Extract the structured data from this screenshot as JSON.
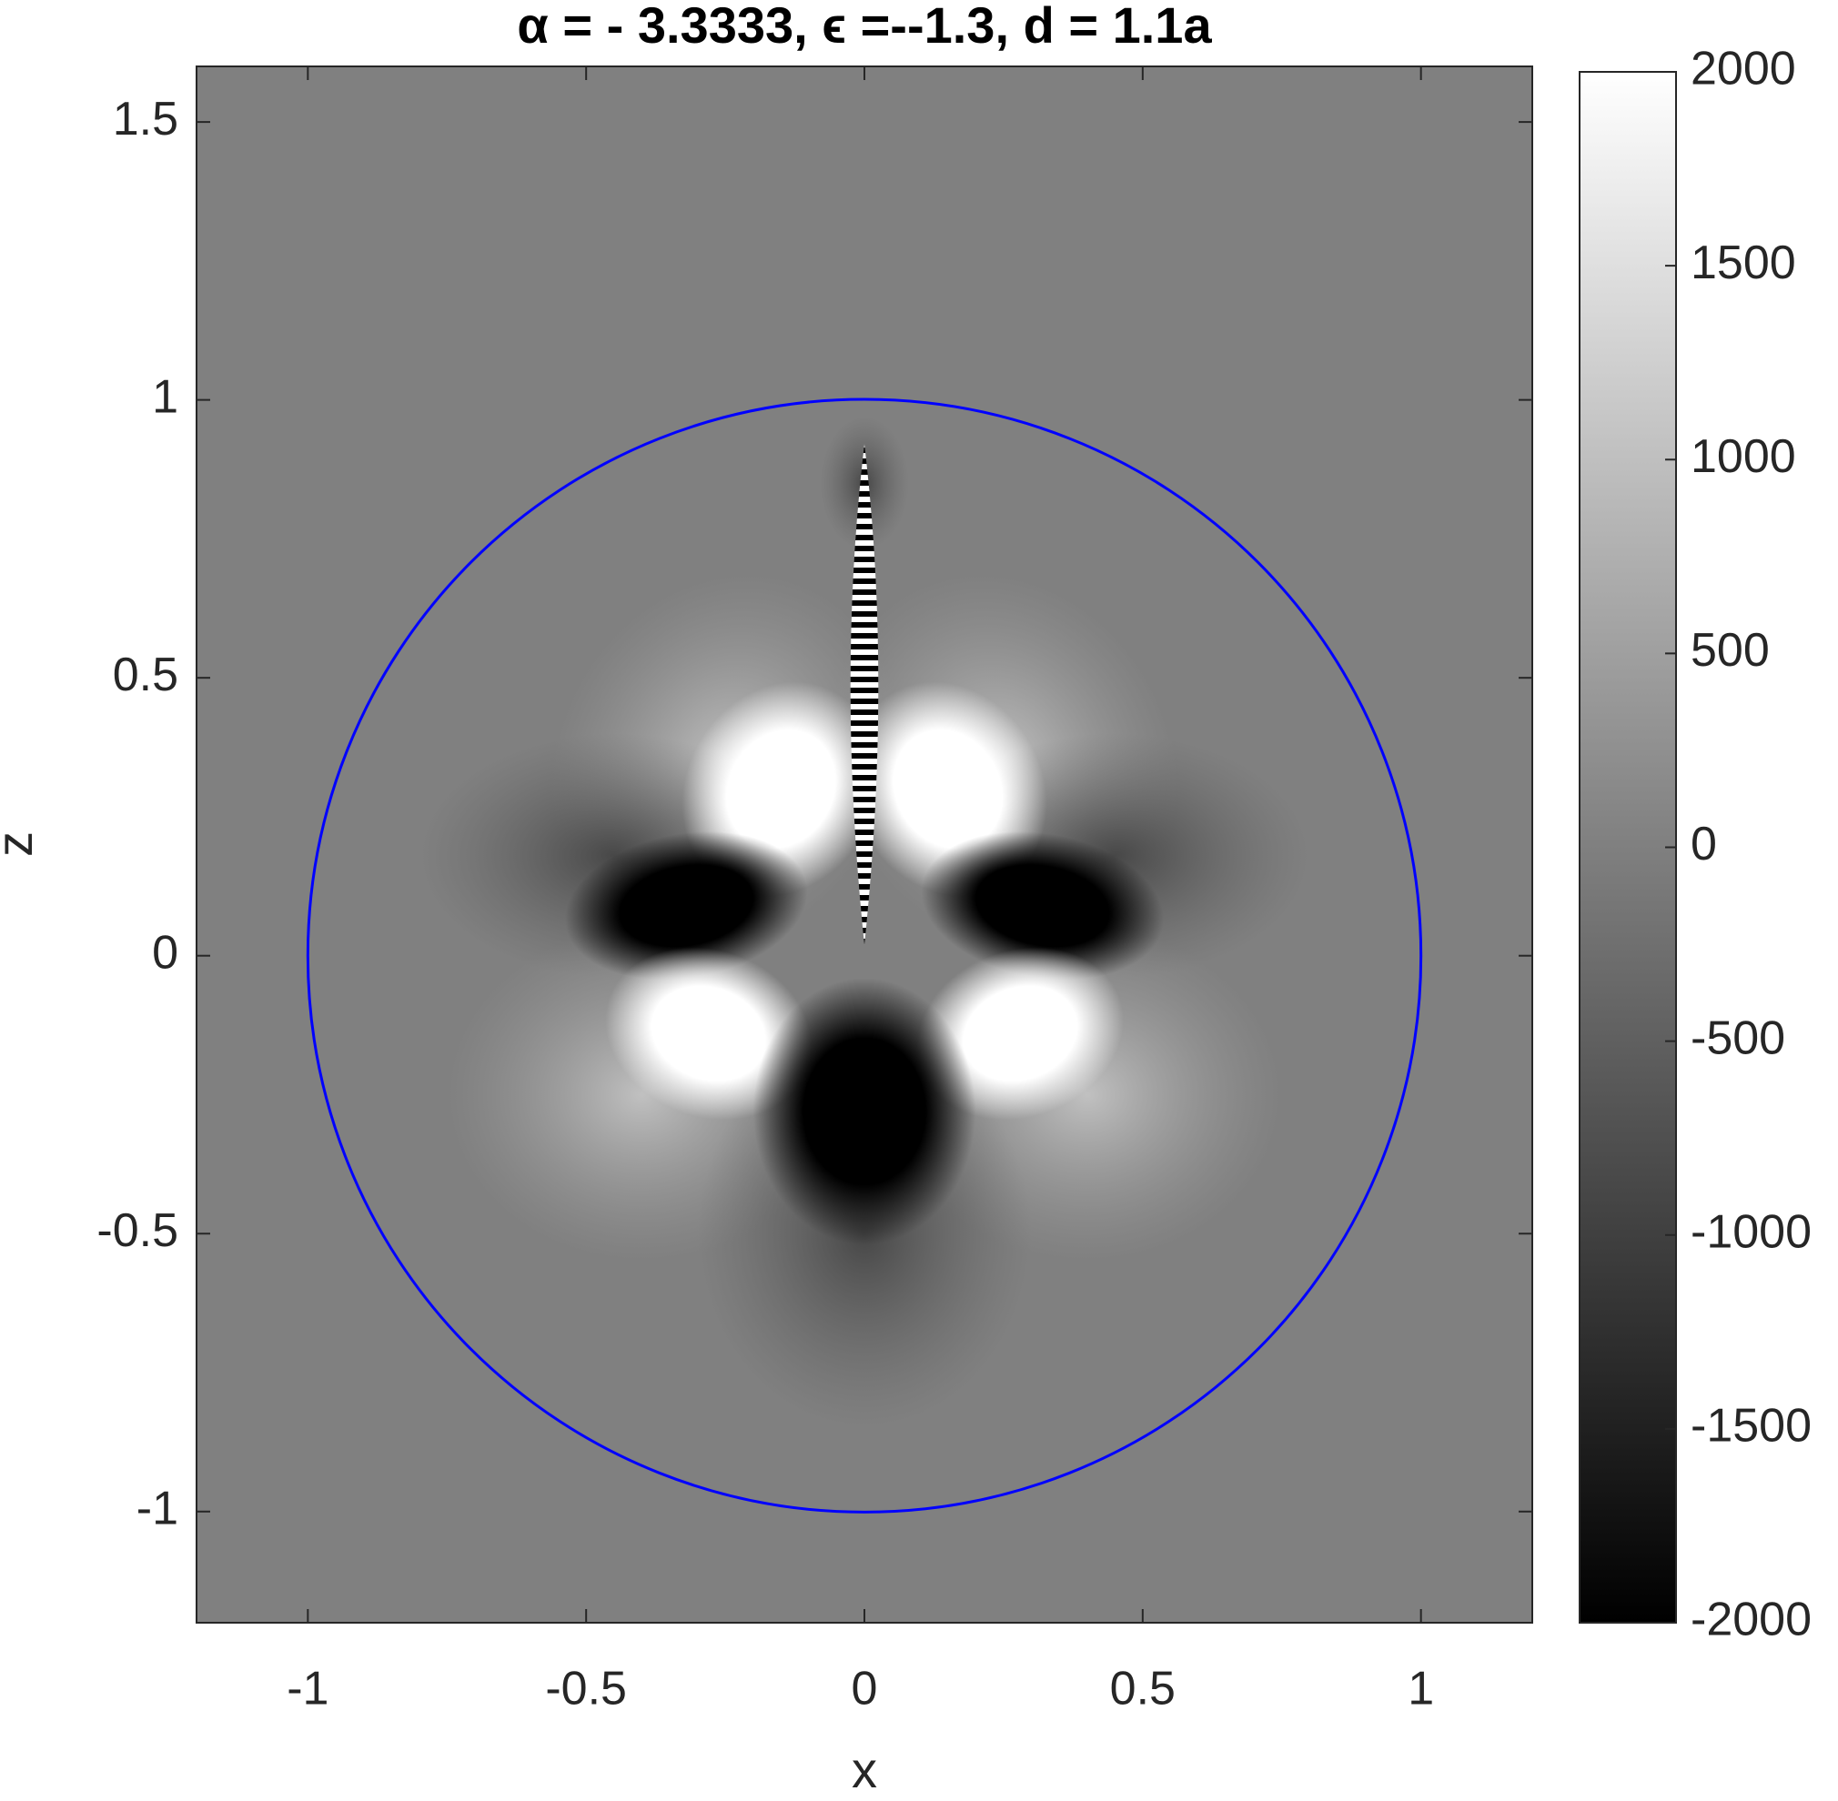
{
  "chart_data": {
    "type": "heatmap",
    "title": "α = - 3.3333,  ϵ =--1.3,  d = 1.1a",
    "xlabel": "x",
    "ylabel": "z",
    "xlim": [
      -1.2,
      1.2
    ],
    "ylim": [
      -1.2,
      1.6
    ],
    "xticks": [
      -1,
      -0.5,
      0,
      0.5,
      1
    ],
    "yticks": [
      -1,
      -0.5,
      0,
      0.5,
      1,
      1.5
    ],
    "colormap": [
      "#000000",
      "#ffffff"
    ],
    "clim": [
      -2000,
      2000
    ],
    "cticks": [
      -2000,
      -1500,
      -1000,
      -500,
      0,
      500,
      1000,
      1500,
      2000
    ],
    "circle": {
      "color": "#0000ff",
      "radius": 1
    }
  }
}
